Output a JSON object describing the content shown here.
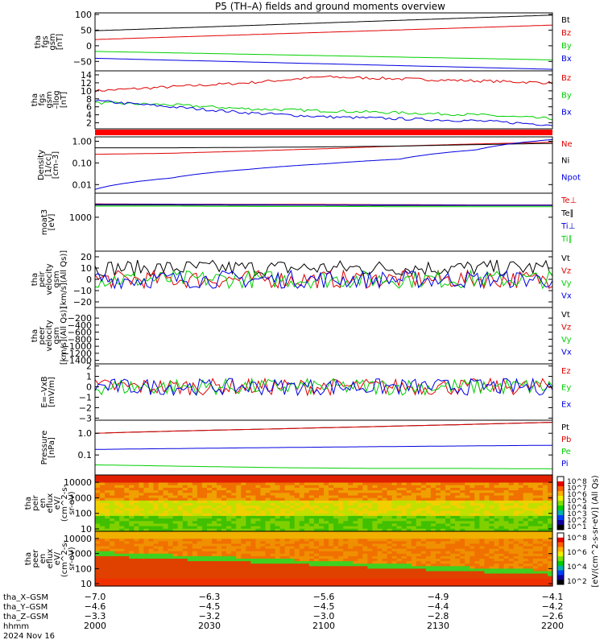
{
  "title": "P5 (TH–A) fields and ground moments overview",
  "colors": {
    "black": "#000000",
    "red": "#e00000",
    "green": "#00d000",
    "blue": "#0000e0"
  },
  "chart_data": [
    {
      "id": "p1",
      "type": "line",
      "ylabel": [
        "tha",
        "fgs",
        "gsm",
        "[nT]"
      ],
      "ylim": [
        -80,
        105
      ],
      "ticks": [
        "100",
        "50",
        "0",
        "−50"
      ],
      "tick_values": [
        100,
        50,
        0,
        -50
      ],
      "series": [
        {
          "name": "Bt",
          "color": "black",
          "values": [
            48,
            98
          ]
        },
        {
          "name": "Bz",
          "color": "red",
          "values": [
            20,
            66
          ]
        },
        {
          "name": "By",
          "color": "green",
          "values": [
            -18,
            -45
          ]
        },
        {
          "name": "Bx",
          "color": "blue",
          "values": [
            -40,
            -75
          ]
        }
      ]
    },
    {
      "id": "p2",
      "type": "line",
      "ylabel": [
        "tha",
        "fgs",
        "gsm",
        "–Ilog",
        "[nT]"
      ],
      "ylim": [
        0.5,
        15
      ],
      "ticks": [
        "14",
        "12",
        "10",
        "8",
        "6",
        "4",
        "2"
      ],
      "tick_values": [
        14,
        12,
        10,
        8,
        6,
        4,
        2
      ],
      "series": [
        {
          "name": "Bz",
          "color": "red",
          "values": [
            10,
            11,
            12,
            13.5,
            13,
            12.5,
            12
          ]
        },
        {
          "name": "By",
          "color": "green",
          "values": [
            7,
            6.5,
            5.5,
            5,
            4.5,
            4,
            3
          ]
        },
        {
          "name": "Bx",
          "color": "blue",
          "values": [
            7.5,
            6,
            4.5,
            3.5,
            3,
            2.5,
            1.5
          ]
        }
      ]
    },
    {
      "id": "p3",
      "type": "line",
      "log": true,
      "ylabel": [
        "Density",
        "[1/cc]",
        "[cm–3]"
      ],
      "ylim": [
        0.004,
        1.6
      ],
      "ticks": [
        "1.00",
        "0.10",
        "0.01"
      ],
      "tick_values": [
        1,
        0.1,
        0.01
      ],
      "series": [
        {
          "name": "Ne",
          "color": "red",
          "values": [
            0.25,
            0.28,
            0.35,
            0.45,
            0.6,
            0.75,
            0.9
          ]
        },
        {
          "name": "Ni",
          "color": "black",
          "values": [
            0.5,
            0.5,
            0.52,
            0.55,
            0.6,
            0.7,
            0.8
          ]
        },
        {
          "name": "Npot",
          "color": "blue",
          "values": [
            0.006,
            0.02,
            0.05,
            0.09,
            0.15,
            0.4,
            1.2
          ]
        }
      ]
    },
    {
      "id": "p4",
      "type": "line",
      "log": true,
      "ylabel": [
        "moat3",
        "[eV]"
      ],
      "ylim": [
        80,
        6000
      ],
      "ticks": [
        "1000"
      ],
      "tick_values": [
        1000
      ],
      "series": [
        {
          "name": "Te⊥",
          "color": "red",
          "values": [
            2700,
            2650,
            2600,
            2600,
            2550,
            2500,
            2500
          ]
        },
        {
          "name": "Te∥",
          "color": "black",
          "values": [
            2500,
            2500,
            2450,
            2450,
            2400,
            2400,
            2400
          ]
        },
        {
          "name": "Ti⊥",
          "color": "blue",
          "values": [
            2600,
            2600,
            2550,
            2500,
            2500,
            2450,
            2450
          ]
        },
        {
          "name": "Ti∥",
          "color": "green",
          "values": [
            2300,
            2300,
            2250,
            2250,
            2200,
            2200,
            2200
          ]
        }
      ]
    },
    {
      "id": "p5",
      "type": "line",
      "ylabel": [
        "tha",
        "peir",
        "velocity",
        "gsm",
        "[km/s](All Qs)]"
      ],
      "ylim": [
        -25,
        25
      ],
      "ticks": [
        "20",
        "10",
        "0",
        "−10",
        "−20"
      ],
      "tick_values": [
        20,
        10,
        0,
        -10,
        -20
      ],
      "series": [
        {
          "name": "Vt",
          "color": "black",
          "values": [
            10
          ]
        },
        {
          "name": "Vz",
          "color": "red",
          "values": [
            0
          ]
        },
        {
          "name": "Vy",
          "color": "green",
          "values": [
            0
          ]
        },
        {
          "name": "Vx",
          "color": "blue",
          "values": [
            0
          ]
        }
      ]
    },
    {
      "id": "p6",
      "type": "line",
      "ylabel": [
        "tha",
        "peer",
        "velocity",
        "gsm",
        "[km/s](All Qs)]"
      ],
      "ylim": [
        -1500,
        100
      ],
      "ticks": [
        "−200",
        "−400",
        "−600",
        "−800",
        "−1000",
        "−1200",
        "−1400"
      ],
      "tick_values": [
        -200,
        -400,
        -600,
        -800,
        -1000,
        -1200,
        -1400
      ],
      "series": [
        {
          "name": "Vt",
          "color": "black",
          "values": []
        },
        {
          "name": "Vz",
          "color": "red",
          "values": []
        },
        {
          "name": "Vy",
          "color": "green",
          "values": []
        },
        {
          "name": "Vx",
          "color": "blue",
          "values": []
        }
      ]
    },
    {
      "id": "p7",
      "type": "line",
      "ylabel": [
        "E=–VxB",
        "[mV/m]"
      ],
      "ylim": [
        -3.2,
        2.2
      ],
      "ticks": [
        "2",
        "1",
        "0",
        "−1",
        "−2",
        "−3"
      ],
      "tick_values": [
        2,
        1,
        0,
        -1,
        -2,
        -3
      ],
      "series": [
        {
          "name": "Ez",
          "color": "red",
          "values": [
            0
          ]
        },
        {
          "name": "Ey",
          "color": "green",
          "values": [
            0
          ]
        },
        {
          "name": "Ex",
          "color": "blue",
          "values": [
            0
          ]
        }
      ]
    },
    {
      "id": "p8",
      "type": "line",
      "log": true,
      "ylabel": [
        "Pressure",
        "[nPa]"
      ],
      "ylim": [
        0.012,
        4
      ],
      "ticks": [
        "1.0",
        "0.1"
      ],
      "tick_values": [
        1,
        0.1
      ],
      "series": [
        {
          "name": "Pt",
          "color": "black",
          "values": [
            1.0,
            1.3,
            1.6,
            2.0,
            2.5,
            3.2
          ]
        },
        {
          "name": "Pb",
          "color": "red",
          "values": [
            1.0,
            1.3,
            1.6,
            2.0,
            2.5,
            3.2
          ]
        },
        {
          "name": "Pe",
          "color": "green",
          "values": [
            0.035,
            0.03,
            0.026,
            0.024,
            0.024,
            0.023
          ]
        },
        {
          "name": "Pi",
          "color": "blue",
          "values": [
            0.18,
            0.2,
            0.22,
            0.24,
            0.26,
            0.28
          ]
        }
      ]
    },
    {
      "id": "p9",
      "type": "heatmap",
      "ylabel": [
        "tha",
        "peir",
        "en",
        "eflux",
        "eV/",
        "(cm^2-s-",
        "sr-eV)"
      ],
      "ylim": [
        7,
        30000
      ],
      "log": true,
      "ticks": [
        "10000",
        "1000",
        "100",
        "10"
      ],
      "tick_values": [
        10000,
        1000,
        100,
        10
      ]
    },
    {
      "id": "p10",
      "type": "heatmap",
      "ylabel": [
        "tha",
        "peer",
        "en",
        "eflux",
        "eV/",
        "(cm^2-s-",
        "sr-eV)"
      ],
      "ylim": [
        7,
        30000
      ],
      "log": true,
      "ticks": [
        "10000",
        "1000",
        "100",
        "10"
      ],
      "tick_values": [
        10000,
        1000,
        100,
        10
      ]
    }
  ],
  "colorbars": [
    {
      "ticks": [
        "10^8",
        "10^7",
        "10^6",
        "10^5",
        "10^4",
        "10^3",
        "10^2",
        "10^1"
      ]
    },
    {
      "ticks": [
        "10^8",
        "10^6",
        "10^4",
        "10^2"
      ]
    }
  ],
  "colorbar_label": "[eV/(cm^2-s-sr-eV)] (All Qs)",
  "xaxis": {
    "rows": [
      {
        "label": "tha_X–GSM",
        "values": [
          "−7.0",
          "−6.3",
          "−5.6",
          "−4.9",
          "−4.1"
        ]
      },
      {
        "label": "tha_Y–GSM",
        "values": [
          "−4.6",
          "−4.5",
          "−4.5",
          "−4.4",
          "−4.2"
        ]
      },
      {
        "label": "tha_Z–GSM",
        "values": [
          "−3.3",
          "−3.2",
          "−3.0",
          "−2.8",
          "−2.6"
        ]
      },
      {
        "label": "hhmm",
        "values": [
          "2000",
          "2030",
          "2100",
          "2130",
          "2200"
        ]
      }
    ],
    "date": "2024 Nov 16"
  }
}
